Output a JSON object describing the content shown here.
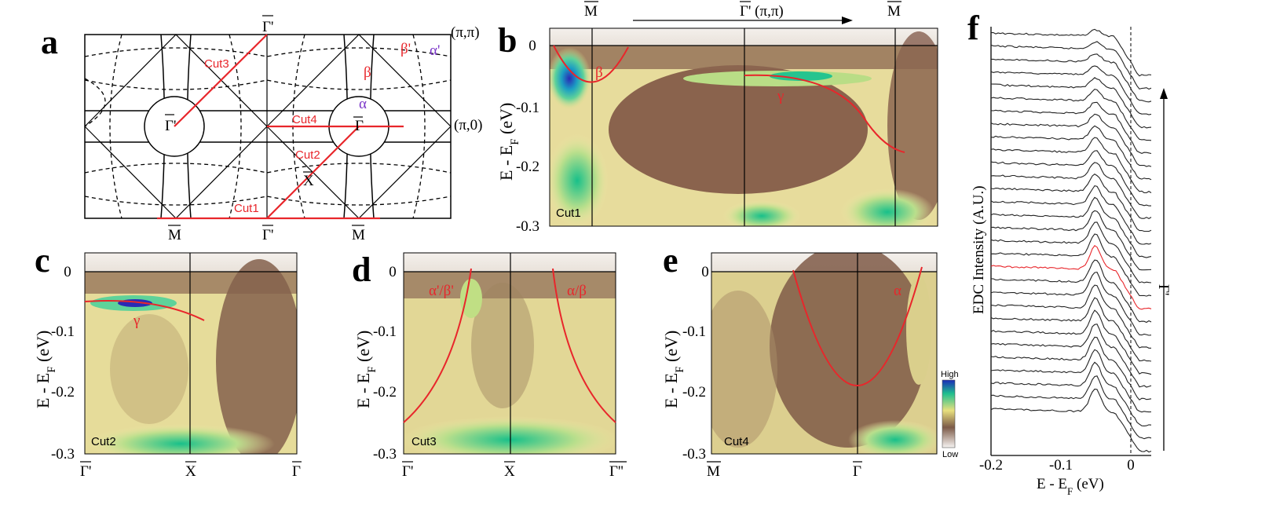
{
  "panel_labels": [
    "a",
    "b",
    "c",
    "d",
    "e",
    "f"
  ],
  "colors": {
    "band": "#e8262b",
    "alpha_label": "#7a34c8"
  },
  "panel_a": {
    "corner_labels": [
      "(π,π)",
      "(π,0)"
    ],
    "band_labels": {
      "beta": "β",
      "beta_prime": "β'",
      "alpha_prime": "α'",
      "alpha": "α"
    },
    "cuts": [
      "Cut1",
      "Cut2",
      "Cut3",
      "Cut4"
    ],
    "points": {
      "gamma_bar_prime": "Γ'",
      "gamma_bar": "Γ",
      "m_bar": "M",
      "x_bar": "X"
    },
    "bottom_labels": [
      "M",
      "Γ'",
      "M"
    ],
    "top_label": "Γ'"
  },
  "panel_b": {
    "top_labels": [
      "M",
      "Γ' (π,π)",
      "M"
    ],
    "ylabel": "E - E",
    "ylabel_sub": "F",
    "ylabel_unit": " (eV)",
    "yticks": [
      "0",
      "-0.1",
      "-0.2",
      "-0.3"
    ],
    "cut": "Cut1",
    "bands": [
      "β",
      "γ"
    ]
  },
  "panel_c": {
    "ylabel": "E - E",
    "ylabel_sub": "F",
    "ylabel_unit": " (eV)",
    "yticks": [
      "0",
      "-0.1",
      "-0.2",
      "-0.3"
    ],
    "xlabels": [
      "Γ'",
      "X",
      "Γ"
    ],
    "cut": "Cut2",
    "band": "γ"
  },
  "panel_d": {
    "ylabel": "E - E",
    "ylabel_sub": "F",
    "ylabel_unit": " (eV)",
    "yticks": [
      "0",
      "-0.1",
      "-0.2",
      "-0.3"
    ],
    "xlabels": [
      "Γ'",
      "X",
      "Γ''"
    ],
    "cut": "Cut3",
    "bands": [
      "α'/β'",
      "α/β"
    ]
  },
  "panel_e": {
    "ylabel": "E - E",
    "ylabel_sub": "F",
    "ylabel_unit": " (eV)",
    "yticks": [
      "0",
      "-0.1",
      "-0.2",
      "-0.3"
    ],
    "xlabels": [
      "M",
      "Γ"
    ],
    "cut": "Cut4",
    "band": "α",
    "colorbar": [
      "High",
      "Low"
    ]
  },
  "panel_f": {
    "ylabel": "EDC Intensity (A.U.)",
    "xlabel": "E - E",
    "xlabel_sub": "F",
    "xlabel_unit": " (eV)",
    "xticks": [
      "-0.2",
      "-0.1",
      "0"
    ],
    "arrow_label": "Γ'"
  }
}
